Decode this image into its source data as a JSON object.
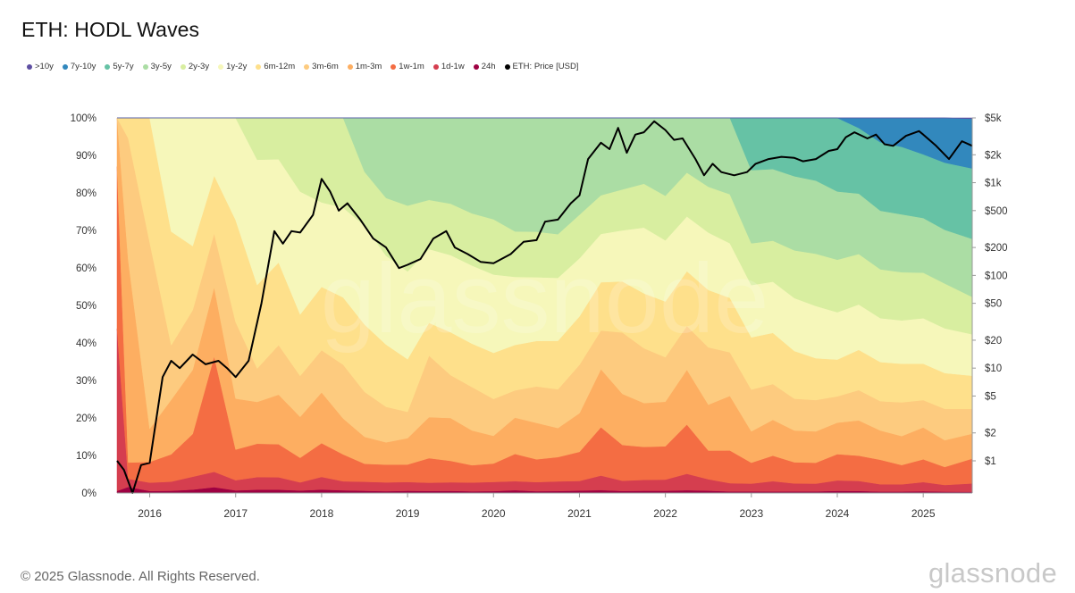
{
  "title": "ETH: HODL Waves",
  "footer": "© 2025 Glassnode. All Rights Reserved.",
  "brand": "glassnode",
  "watermark": "glassnode",
  "chart_data": {
    "type": "area",
    "stacked": true,
    "normalized": true,
    "title": "ETH: HODL Waves",
    "legend_position": "top-left",
    "grid": false,
    "x_range": [
      2015.62,
      2025.57
    ],
    "x_ticks": [
      "2016",
      "2017",
      "2018",
      "2019",
      "2020",
      "2021",
      "2022",
      "2023",
      "2024",
      "2025"
    ],
    "x_tick_values": [
      2016,
      2017,
      2018,
      2019,
      2020,
      2021,
      2022,
      2023,
      2024,
      2025
    ],
    "y_left_ticks": [
      "0%",
      "10%",
      "20%",
      "30%",
      "40%",
      "50%",
      "60%",
      "70%",
      "80%",
      "90%",
      "100%"
    ],
    "y_left_range": [
      0,
      100
    ],
    "y_right_scale": "log",
    "y_right_ticks": [
      "$1",
      "$2",
      "$5",
      "$10",
      "$20",
      "$50",
      "$100",
      "$200",
      "$500",
      "$1k",
      "$2k",
      "$5k"
    ],
    "y_right_tick_values": [
      1,
      2,
      5,
      10,
      20,
      50,
      100,
      200,
      500,
      1000,
      2000,
      5000
    ],
    "y_right_range": [
      0.45,
      5000
    ],
    "x": [
      2015.62,
      2015.75,
      2016.0,
      2016.25,
      2016.5,
      2016.75,
      2017.0,
      2017.25,
      2017.5,
      2017.75,
      2018.0,
      2018.25,
      2018.5,
      2018.75,
      2019.0,
      2019.25,
      2019.5,
      2019.75,
      2020.0,
      2020.25,
      2020.5,
      2020.75,
      2021.0,
      2021.25,
      2021.5,
      2021.75,
      2022.0,
      2022.25,
      2022.5,
      2022.75,
      2023.0,
      2023.25,
      2023.5,
      2023.75,
      2024.0,
      2024.25,
      2024.5,
      2024.75,
      2025.0,
      2025.25,
      2025.57
    ],
    "series": [
      {
        "name": "24h",
        "color": "#9e0142",
        "values": [
          0.5,
          1.5,
          0.5,
          0.5,
          0.8,
          1.5,
          0.5,
          0.8,
          0.8,
          0.6,
          0.8,
          0.6,
          0.5,
          0.4,
          0.5,
          0.5,
          0.5,
          0.4,
          0.4,
          0.6,
          0.4,
          0.4,
          0.5,
          0.6,
          0.4,
          0.4,
          0.4,
          0.5,
          0.4,
          0.3,
          0.3,
          0.3,
          0.3,
          0.3,
          0.4,
          0.4,
          0.3,
          0.3,
          0.4,
          0.3,
          0.3
        ]
      },
      {
        "name": "1d-1w",
        "color": "#d53e4f",
        "values": [
          40,
          2,
          2,
          2,
          3,
          4,
          2,
          3,
          3,
          2,
          3,
          2,
          2,
          2,
          2,
          2,
          2,
          2,
          2,
          2,
          2,
          2,
          2,
          3,
          2,
          2,
          2,
          3,
          2,
          1.5,
          1.5,
          2,
          1.5,
          1.5,
          2,
          2,
          1.5,
          1.5,
          2,
          1.5,
          2
        ]
      },
      {
        "name": "1w-1m",
        "color": "#f46d43",
        "values": [
          40,
          4,
          5,
          6,
          10,
          30,
          6,
          8,
          8,
          6,
          8,
          6,
          4,
          4,
          4,
          6,
          5,
          4,
          4,
          6,
          5,
          5,
          6,
          10,
          7,
          6,
          6,
          9,
          5,
          6,
          4,
          5,
          4,
          4,
          5,
          5,
          5,
          4,
          5,
          4,
          6
        ]
      },
      {
        "name": "1m-3m",
        "color": "#fdae61",
        "values": [
          12,
          50,
          8,
          12,
          15,
          18,
          10,
          10,
          12,
          10,
          12,
          8,
          6,
          5,
          6,
          10,
          10,
          8,
          6,
          8,
          8,
          6,
          8,
          12,
          10,
          8,
          8,
          10,
          8,
          10,
          6,
          7,
          6,
          6,
          6,
          7,
          6,
          6,
          7,
          6,
          6
        ]
      },
      {
        "name": "3m-6m",
        "color": "#fdcb7f",
        "values": [
          0,
          30,
          45,
          12,
          14,
          14,
          15,
          8,
          12,
          10,
          10,
          12,
          10,
          8,
          6,
          15,
          10,
          10,
          8,
          6,
          8,
          8,
          10,
          8,
          12,
          10,
          8,
          8,
          10,
          8,
          8,
          7,
          6,
          6,
          5,
          6,
          6,
          7,
          6,
          7,
          6
        ]
      },
      {
        "name": "6m-12m",
        "color": "#fee08b",
        "values": [
          0,
          5,
          30,
          25,
          15,
          15,
          20,
          20,
          20,
          15,
          15,
          15,
          15,
          14,
          12,
          8,
          10,
          10,
          10,
          10,
          10,
          10,
          10,
          10,
          10,
          10,
          10,
          10,
          10,
          10,
          10,
          10,
          9,
          8,
          7,
          8,
          8,
          8,
          8,
          8,
          8
        ]
      },
      {
        "name": "1y-2y",
        "color": "#f6f7ba",
        "values": [
          0,
          0,
          0,
          25,
          30,
          15,
          20,
          30,
          25,
          30,
          20,
          20,
          22,
          20,
          20,
          18,
          18,
          18,
          17,
          15,
          14,
          13,
          12,
          10,
          10,
          12,
          11,
          10,
          10,
          10,
          10,
          10,
          10,
          10,
          9,
          9,
          9,
          9,
          10,
          10,
          10
        ]
      },
      {
        "name": "2y-3y",
        "color": "#d8eea0",
        "values": [
          0,
          0,
          0,
          0,
          0,
          0,
          0,
          10,
          10,
          18,
          20,
          20,
          12,
          13,
          15,
          12,
          12,
          12,
          12,
          10,
          10,
          9,
          9,
          8,
          8,
          8,
          8,
          8,
          8,
          9,
          8,
          8,
          9,
          10,
          10,
          10,
          10,
          10,
          10,
          10,
          9
        ]
      },
      {
        "name": "3y-5y",
        "color": "#abdda4",
        "values": [
          0,
          0,
          0,
          0,
          0,
          0,
          0,
          0,
          0,
          0,
          0,
          0,
          12,
          18,
          20,
          20,
          20,
          22,
          22,
          25,
          25,
          24,
          20,
          16,
          14,
          12,
          14,
          10,
          12,
          14,
          14,
          14,
          14,
          14,
          13,
          12,
          12,
          12,
          12,
          12,
          14
        ]
      },
      {
        "name": "5y-7y",
        "color": "#66c2a5",
        "values": [
          0,
          0,
          0,
          0,
          0,
          0,
          0,
          0,
          0,
          0,
          0,
          0,
          0,
          0,
          0,
          0,
          0,
          0,
          0,
          0,
          0,
          0,
          0,
          0,
          0,
          0,
          0,
          0,
          0,
          0,
          10,
          10,
          11,
          12,
          14,
          13,
          14,
          14,
          14,
          15,
          17
        ]
      },
      {
        "name": "7y-10y",
        "color": "#3288bd",
        "values": [
          0,
          0,
          0,
          0,
          0,
          0,
          0,
          0,
          0,
          0,
          0,
          0,
          0,
          0,
          0,
          0,
          0,
          0,
          0,
          0,
          0,
          0,
          0,
          0,
          0,
          0,
          0,
          0,
          0,
          0,
          0,
          0,
          0,
          0,
          0,
          2,
          5,
          6,
          8,
          10,
          12
        ]
      },
      {
        "name": ">10y",
        "color": "#5e4fa2",
        "values": [
          0,
          0,
          0,
          0,
          0,
          0,
          0,
          0,
          0,
          0,
          0,
          0,
          0,
          0,
          0,
          0,
          0,
          0,
          0,
          0,
          0,
          0,
          0,
          0,
          0,
          0,
          0,
          0,
          0,
          0,
          0,
          0,
          0,
          0,
          0,
          0,
          0,
          0,
          0,
          0,
          0.2
        ]
      }
    ],
    "price_series": {
      "name": "ETH: Price [USD]",
      "color": "#000000",
      "scale": "log",
      "x": [
        2015.62,
        2015.7,
        2015.8,
        2015.9,
        2016.0,
        2016.15,
        2016.25,
        2016.35,
        2016.5,
        2016.65,
        2016.8,
        2016.9,
        2017.0,
        2017.15,
        2017.3,
        2017.45,
        2017.55,
        2017.65,
        2017.75,
        2017.9,
        2018.0,
        2018.1,
        2018.2,
        2018.3,
        2018.45,
        2018.6,
        2018.75,
        2018.9,
        2019.0,
        2019.15,
        2019.3,
        2019.45,
        2019.55,
        2019.7,
        2019.85,
        2020.0,
        2020.2,
        2020.35,
        2020.5,
        2020.6,
        2020.75,
        2020.9,
        2021.0,
        2021.1,
        2021.25,
        2021.35,
        2021.45,
        2021.55,
        2021.65,
        2021.75,
        2021.87,
        2022.0,
        2022.1,
        2022.2,
        2022.35,
        2022.45,
        2022.55,
        2022.65,
        2022.8,
        2022.95,
        2023.05,
        2023.2,
        2023.35,
        2023.5,
        2023.6,
        2023.75,
        2023.9,
        2024.0,
        2024.1,
        2024.2,
        2024.35,
        2024.45,
        2024.55,
        2024.65,
        2024.8,
        2024.95,
        2025.0,
        2025.15,
        2025.3,
        2025.45,
        2025.57
      ],
      "values": [
        1.0,
        0.8,
        0.45,
        0.9,
        0.95,
        8,
        12,
        10,
        14,
        11,
        12,
        10,
        8,
        12,
        50,
        300,
        220,
        300,
        290,
        450,
        1100,
        800,
        500,
        600,
        400,
        250,
        200,
        120,
        130,
        150,
        250,
        300,
        200,
        170,
        140,
        135,
        170,
        230,
        240,
        380,
        400,
        600,
        730,
        1800,
        2700,
        2300,
        3900,
        2100,
        3300,
        3500,
        4600,
        3700,
        2900,
        3000,
        1800,
        1200,
        1600,
        1300,
        1200,
        1300,
        1600,
        1800,
        1900,
        1850,
        1700,
        1800,
        2200,
        2300,
        3100,
        3500,
        3000,
        3300,
        2600,
        2500,
        3200,
        3600,
        3300,
        2500,
        1800,
        2800,
        2500
      ]
    },
    "legend": [
      {
        "label": ">10y",
        "color": "#5e4fa2"
      },
      {
        "label": "7y-10y",
        "color": "#3288bd"
      },
      {
        "label": "5y-7y",
        "color": "#66c2a5"
      },
      {
        "label": "3y-5y",
        "color": "#abdda4"
      },
      {
        "label": "2y-3y",
        "color": "#d8eea0"
      },
      {
        "label": "1y-2y",
        "color": "#f6f7ba"
      },
      {
        "label": "6m-12m",
        "color": "#fee08b"
      },
      {
        "label": "3m-6m",
        "color": "#fdcb7f"
      },
      {
        "label": "1m-3m",
        "color": "#fdae61"
      },
      {
        "label": "1w-1m",
        "color": "#f46d43"
      },
      {
        "label": "1d-1w",
        "color": "#d53e4f"
      },
      {
        "label": "24h",
        "color": "#9e0142"
      },
      {
        "label": "ETH: Price [USD]",
        "color": "#000000"
      }
    ]
  }
}
